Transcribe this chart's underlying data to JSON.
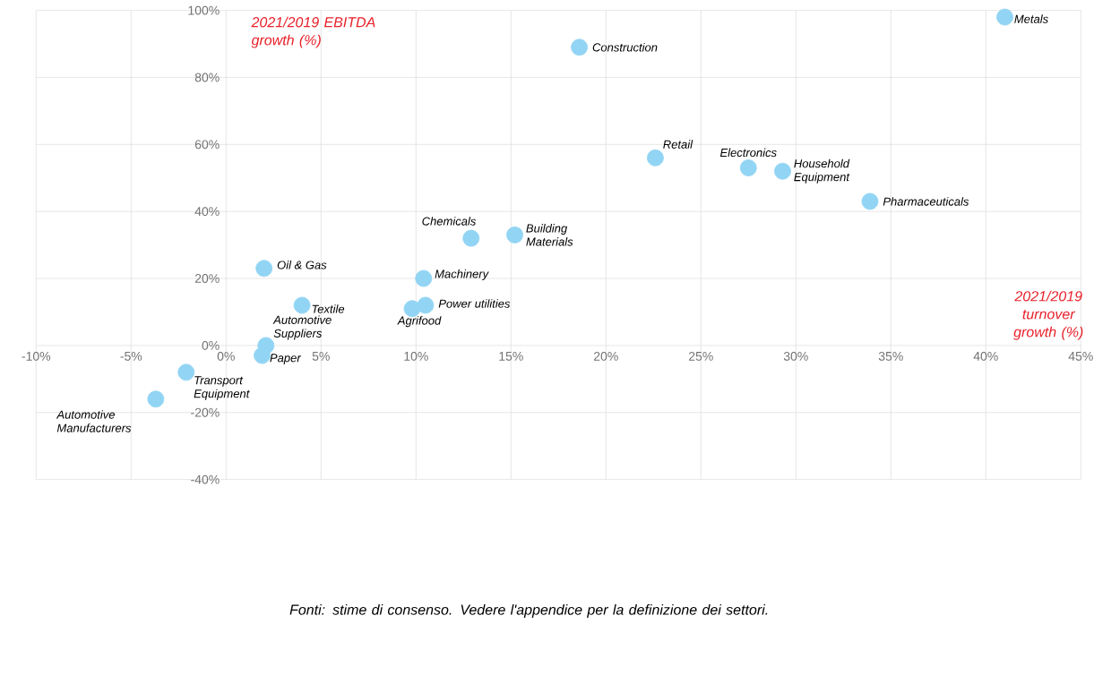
{
  "chart_data": {
    "type": "scatter",
    "ylabel": "2021/2019 EBITDA growth (%)",
    "xlabel": "2021/2019 turnover growth (%)",
    "x": [
      41,
      18.6,
      22.6,
      27.5,
      29.3,
      33.9,
      12.9,
      15.2,
      2.0,
      10.4,
      10.5,
      9.8,
      4.0,
      2.1,
      1.9,
      -2.1,
      -3.7
    ],
    "values": [
      98,
      89,
      56,
      53,
      52,
      43,
      32,
      33,
      23,
      20,
      12,
      11,
      12,
      0,
      -3,
      -8,
      -16
    ],
    "color": "#92d4f4",
    "marker": "circle",
    "grid": true,
    "xlim": [
      -10,
      45
    ],
    "ylim": [
      -40,
      100
    ],
    "xticks": [
      {
        "value": -10,
        "label": "-10%"
      },
      {
        "value": -5,
        "label": "-5%"
      },
      {
        "value": 0,
        "label": "0%"
      },
      {
        "value": 5,
        "label": "5%"
      },
      {
        "value": 10,
        "label": "10%"
      },
      {
        "value": 15,
        "label": "15%"
      },
      {
        "value": 20,
        "label": "20%"
      },
      {
        "value": 25,
        "label": "25%"
      },
      {
        "value": 30,
        "label": "30%"
      },
      {
        "value": 35,
        "label": "35%"
      },
      {
        "value": 40,
        "label": "40%"
      },
      {
        "value": 45,
        "label": "45%"
      }
    ],
    "yticks": [
      {
        "value": -40,
        "label": "-40%"
      },
      {
        "value": -20,
        "label": "-20%"
      },
      {
        "value": 0,
        "label": "0%"
      },
      {
        "value": 20,
        "label": "20%"
      },
      {
        "value": 40,
        "label": "40%"
      },
      {
        "value": 60,
        "label": "60%"
      },
      {
        "value": 80,
        "label": "80%"
      },
      {
        "value": 100,
        "label": "100%"
      }
    ],
    "annotations": [
      {
        "text": "Metals",
        "x": 41,
        "y": 98
      },
      {
        "text": "Construction",
        "x": 18.6,
        "y": 89
      },
      {
        "text": "Retail",
        "x": 22.6,
        "y": 56
      },
      {
        "text": "Electronics",
        "x": 27.5,
        "y": 53
      },
      {
        "text": "Household Equipment",
        "x": 29.3,
        "y": 52
      },
      {
        "text": "Pharmaceuticals",
        "x": 33.9,
        "y": 43
      },
      {
        "text": "Chemicals",
        "x": 12.9,
        "y": 32
      },
      {
        "text": "Building Materials",
        "x": 15.2,
        "y": 33
      },
      {
        "text": "Oil & Gas",
        "x": 2.0,
        "y": 23
      },
      {
        "text": "Machinery",
        "x": 10.4,
        "y": 20
      },
      {
        "text": "Power utilities",
        "x": 10.5,
        "y": 12
      },
      {
        "text": "Agrifood",
        "x": 9.8,
        "y": 11
      },
      {
        "text": "Textile",
        "x": 4.0,
        "y": 12
      },
      {
        "text": "Automotive Suppliers",
        "x": 2.1,
        "y": 0
      },
      {
        "text": "Paper",
        "x": 1.9,
        "y": -3
      },
      {
        "text": "Transport Equipment",
        "x": -2.1,
        "y": -8
      },
      {
        "text": "Automotive Manufacturers",
        "x": -3.7,
        "y": -16
      },
      "Fonti: stime di consenso. Vedere l'appendice per la definizione dei settori."
    ]
  }
}
